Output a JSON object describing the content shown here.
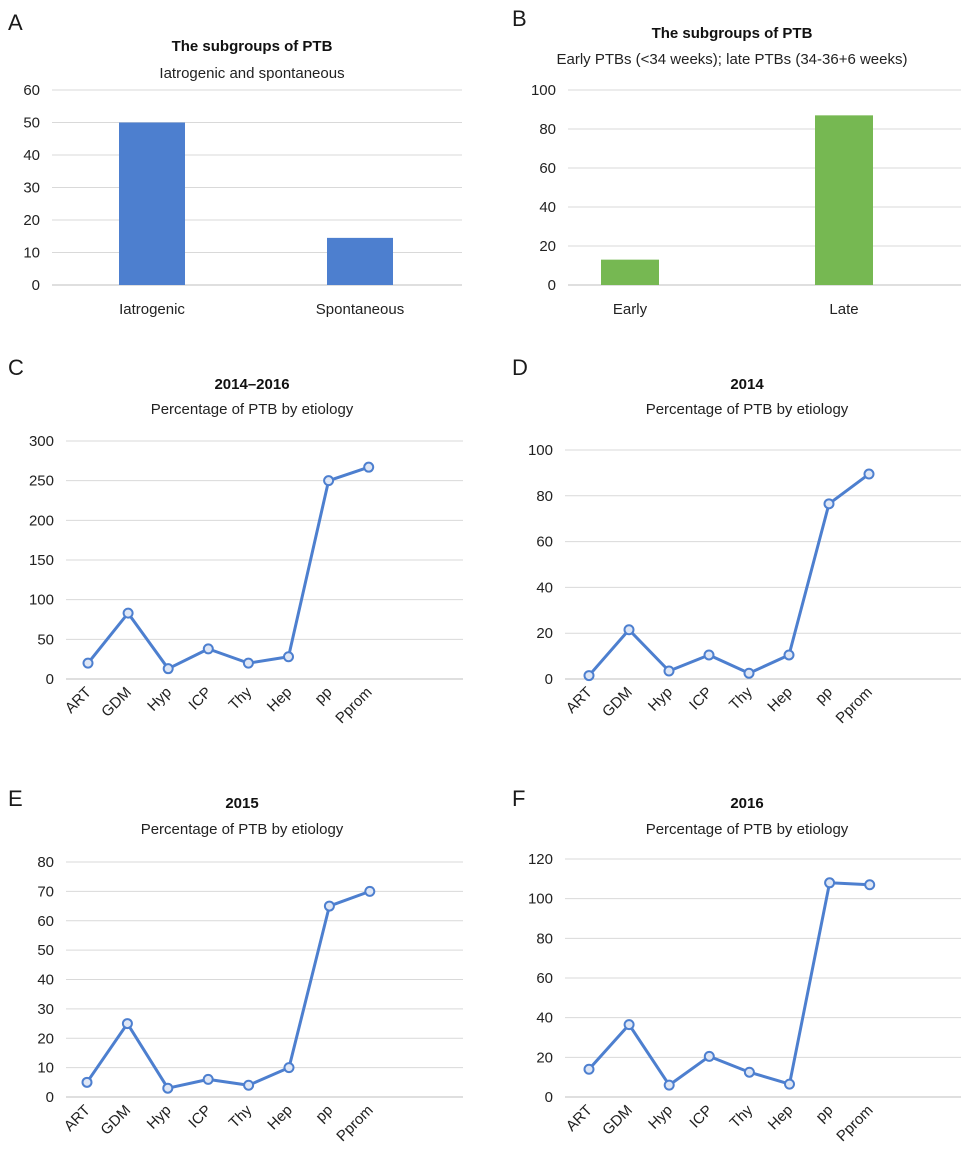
{
  "chart_data": [
    {
      "panel": "A",
      "type": "bar",
      "title": "The subgroups of PTB",
      "subtitle": "Iatrogenic and spontaneous",
      "categories": [
        "Iatrogenic",
        "Spontaneous"
      ],
      "values": [
        50,
        14.5
      ],
      "ylim": [
        0,
        60
      ],
      "yticks": [
        0,
        10,
        20,
        30,
        40,
        50,
        60
      ],
      "color": "#4d7fcf",
      "grid": true
    },
    {
      "panel": "B",
      "type": "bar",
      "title": "The subgroups of PTB",
      "subtitle": "Early PTBs (<34 weeks); late PTBs (34-36+6 weeks)",
      "categories": [
        "Early",
        "Late"
      ],
      "values": [
        13,
        87
      ],
      "ylim": [
        0,
        100
      ],
      "yticks": [
        0,
        20,
        40,
        60,
        80,
        100
      ],
      "color": "#76b852",
      "grid": true
    },
    {
      "panel": "C",
      "type": "line",
      "title": "2014–2016",
      "subtitle": "Percentage of PTB by etiology",
      "categories": [
        "ART",
        "GDM",
        "Hyp",
        "ICP",
        "Thy",
        "Hep",
        "pp",
        "Pprom"
      ],
      "values": [
        20,
        83,
        13,
        38,
        20,
        28,
        250,
        267
      ],
      "ylim": [
        0,
        300
      ],
      "yticks": [
        0,
        50,
        100,
        150,
        200,
        250,
        300
      ],
      "color": "#4d7fcf",
      "grid": true
    },
    {
      "panel": "D",
      "type": "line",
      "title": "2014",
      "subtitle": "Percentage of PTB by etiology",
      "categories": [
        "ART",
        "GDM",
        "Hyp",
        "ICP",
        "Thy",
        "Hep",
        "pp",
        "Pprom"
      ],
      "values": [
        1.5,
        21.5,
        3.5,
        10.5,
        2.5,
        10.5,
        76.5,
        89.5
      ],
      "ylim": [
        0,
        100
      ],
      "yticks": [
        0,
        20,
        40,
        60,
        80,
        100
      ],
      "color": "#4d7fcf",
      "grid": true
    },
    {
      "panel": "E",
      "type": "line",
      "title": "2015",
      "subtitle": "Percentage of PTB by etiology",
      "categories": [
        "ART",
        "GDM",
        "Hyp",
        "ICP",
        "Thy",
        "Hep",
        "pp",
        "Pprom"
      ],
      "values": [
        5,
        25,
        3,
        6,
        4,
        10,
        65,
        70
      ],
      "ylim": [
        0,
        80
      ],
      "yticks": [
        0,
        10,
        20,
        30,
        40,
        50,
        60,
        70,
        80
      ],
      "color": "#4d7fcf",
      "grid": true
    },
    {
      "panel": "F",
      "type": "line",
      "title": "2016",
      "subtitle": "Percentage of PTB by etiology",
      "categories": [
        "ART",
        "GDM",
        "Hyp",
        "ICP",
        "Thy",
        "Hep",
        "pp",
        "Pprom"
      ],
      "values": [
        14,
        36.5,
        6,
        20.5,
        12.5,
        6.5,
        108,
        107
      ],
      "ylim": [
        0,
        120
      ],
      "yticks": [
        0,
        20,
        40,
        60,
        80,
        100,
        120
      ],
      "color": "#4d7fcf",
      "grid": true
    }
  ]
}
